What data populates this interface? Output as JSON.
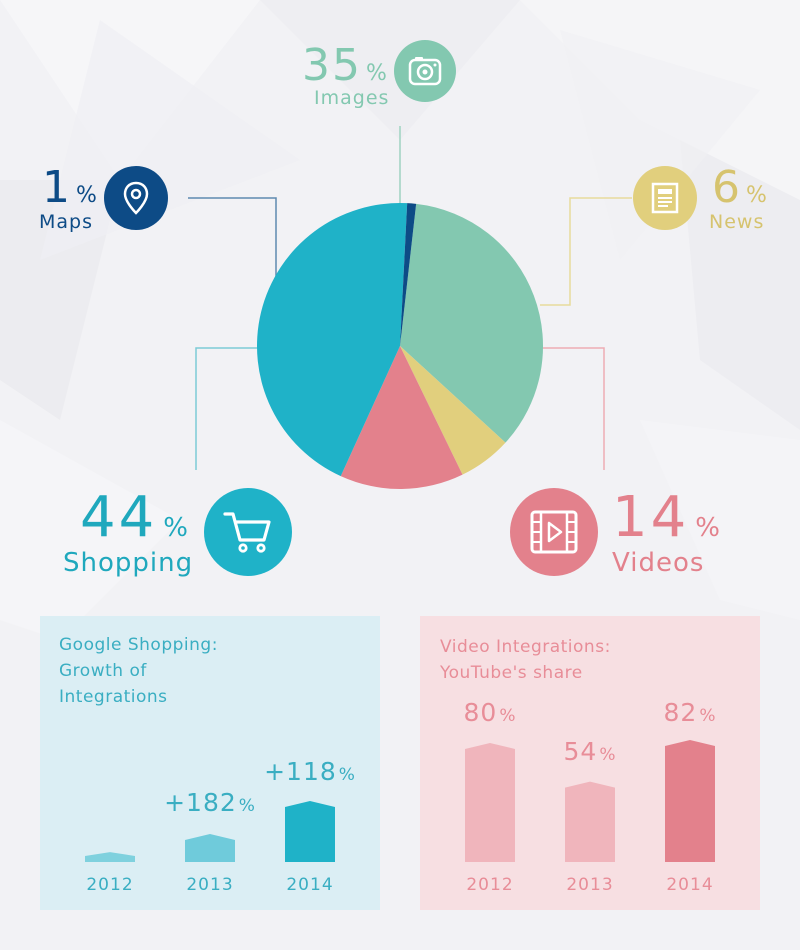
{
  "colors": {
    "images": "#83c8b0",
    "news": "#e1cf7d",
    "videos": "#e3818c",
    "shopping": "#1fb2c8",
    "maps": "#0d4b86",
    "shopping_panel_bg": "#dbeef4",
    "video_panel_bg": "#f7dfe2",
    "shopping_title": "#3aaec2",
    "video_title": "#e88d98",
    "year_shopping": "#3aaec2",
    "year_video": "#e88d98"
  },
  "icons": {
    "images": "camera-icon",
    "maps": "map-pin-icon",
    "news": "newspaper-icon",
    "shopping": "shopping-cart-icon",
    "videos": "film-play-icon"
  },
  "chart_data": [
    {
      "type": "pie",
      "categories": [
        "Images",
        "News",
        "Videos",
        "Shopping",
        "Maps"
      ],
      "values": [
        35,
        6,
        14,
        44,
        1
      ],
      "unit": "%"
    },
    {
      "type": "bar",
      "title": "Google Shopping: Growth of Integrations",
      "title_lines": [
        "Google Shopping:",
        "Growth of",
        "Integrations"
      ],
      "categories": [
        "2012",
        "2013",
        "2014"
      ],
      "values": [
        null,
        182,
        118
      ],
      "labels": [
        "",
        "+182",
        "+118"
      ],
      "unit": "%"
    },
    {
      "type": "bar",
      "title": "Video Integrations: YouTube's share",
      "title_lines": [
        "Video Integrations:",
        "YouTube's share"
      ],
      "categories": [
        "2012",
        "2013",
        "2014"
      ],
      "values": [
        80,
        54,
        82
      ],
      "unit": "%"
    }
  ],
  "pie_labels": {
    "images": {
      "value": "35",
      "sign": "%",
      "label": "Images"
    },
    "maps": {
      "value": "1",
      "sign": "%",
      "label": "Maps"
    },
    "news": {
      "value": "6",
      "sign": "%",
      "label": "News"
    },
    "shopping": {
      "value": "44",
      "sign": "%",
      "label": "Shopping"
    },
    "videos": {
      "value": "14",
      "sign": "%",
      "label": "Videos"
    }
  }
}
